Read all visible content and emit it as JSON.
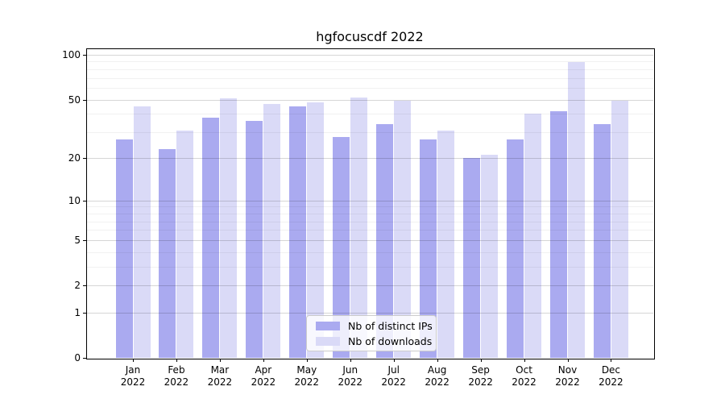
{
  "title": "hgfocuscdf 2022",
  "chart_data": {
    "type": "bar",
    "title": "hgfocuscdf 2022",
    "year_label": "2022",
    "months": [
      "Jan",
      "Feb",
      "Mar",
      "Apr",
      "May",
      "Jun",
      "Jul",
      "Aug",
      "Sep",
      "Oct",
      "Nov",
      "Dec"
    ],
    "categories": [
      "Jan 2022",
      "Feb 2022",
      "Mar 2022",
      "Apr 2022",
      "May 2022",
      "Jun 2022",
      "Jul 2022",
      "Aug 2022",
      "Sep 2022",
      "Oct 2022",
      "Nov 2022",
      "Dec 2022"
    ],
    "series": [
      {
        "name": "Nb of distinct IPs",
        "color": "#aaaaf0",
        "values": [
          27,
          23,
          38,
          36,
          45,
          28,
          34,
          27,
          20,
          27,
          42,
          34
        ]
      },
      {
        "name": "Nb of downloads",
        "color": "#dadaf7",
        "values": [
          45,
          31,
          51,
          47,
          48,
          52,
          49,
          31,
          21,
          40,
          89,
          49
        ]
      }
    ],
    "y_axis": {
      "scale": "log1p",
      "major_ticks": [
        0,
        1,
        2,
        5,
        10,
        20,
        50,
        100
      ],
      "minor_ticks": [
        3,
        4,
        6,
        7,
        8,
        9,
        30,
        40,
        60,
        70,
        80,
        90
      ],
      "range": [
        0,
        111
      ]
    },
    "x_axis": {
      "label": ""
    },
    "legend": {
      "position": "bottom-center",
      "items": [
        "Nb of distinct IPs",
        "Nb of downloads"
      ]
    },
    "grid": "on"
  }
}
